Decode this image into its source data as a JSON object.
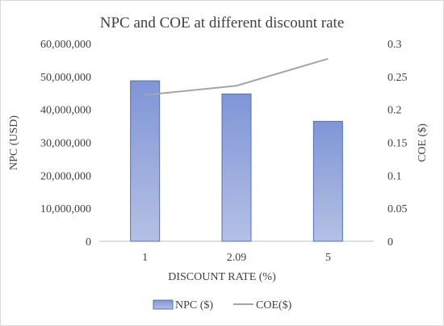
{
  "chart_data": {
    "type": "bar",
    "title": "NPC and COE at different discount rate",
    "xlabel": "DISCOUNT RATE (%)",
    "ylabel": "NPC (USD)",
    "y2label": "COE ($)",
    "categories": [
      "1",
      "2.09",
      "5"
    ],
    "ylim": [
      0,
      60000000
    ],
    "y2lim": [
      0,
      0.3
    ],
    "y_ticks": [
      "0",
      "10,000,000",
      "20,000,000",
      "30,000,000",
      "40,000,000",
      "50,000,000",
      "60,000,000"
    ],
    "y2_ticks": [
      "0",
      "0.05",
      "0.1",
      "0.15",
      "0.2",
      "0.25",
      "0.3"
    ],
    "y_tick_values": [
      0,
      10000000,
      20000000,
      30000000,
      40000000,
      50000000,
      60000000
    ],
    "y2_tick_values": [
      0,
      0.05,
      0.1,
      0.15,
      0.2,
      0.25,
      0.3
    ],
    "series": [
      {
        "name": "NPC ($)",
        "type": "bar",
        "axis": "left",
        "values": [
          48700000,
          44700000,
          36400000
        ]
      },
      {
        "name": "COE($)",
        "type": "line",
        "axis": "right",
        "values": [
          0.222,
          0.236,
          0.277
        ]
      }
    ],
    "grid": false,
    "legend": "bottom",
    "colors": {
      "bar_top": "#7f95d6",
      "bar_bottom": "#b4c0e4",
      "bar_edge": "#4f6fbf",
      "line": "#a5a5a5",
      "axis": "#bfbfbf",
      "text": "#404040"
    }
  }
}
